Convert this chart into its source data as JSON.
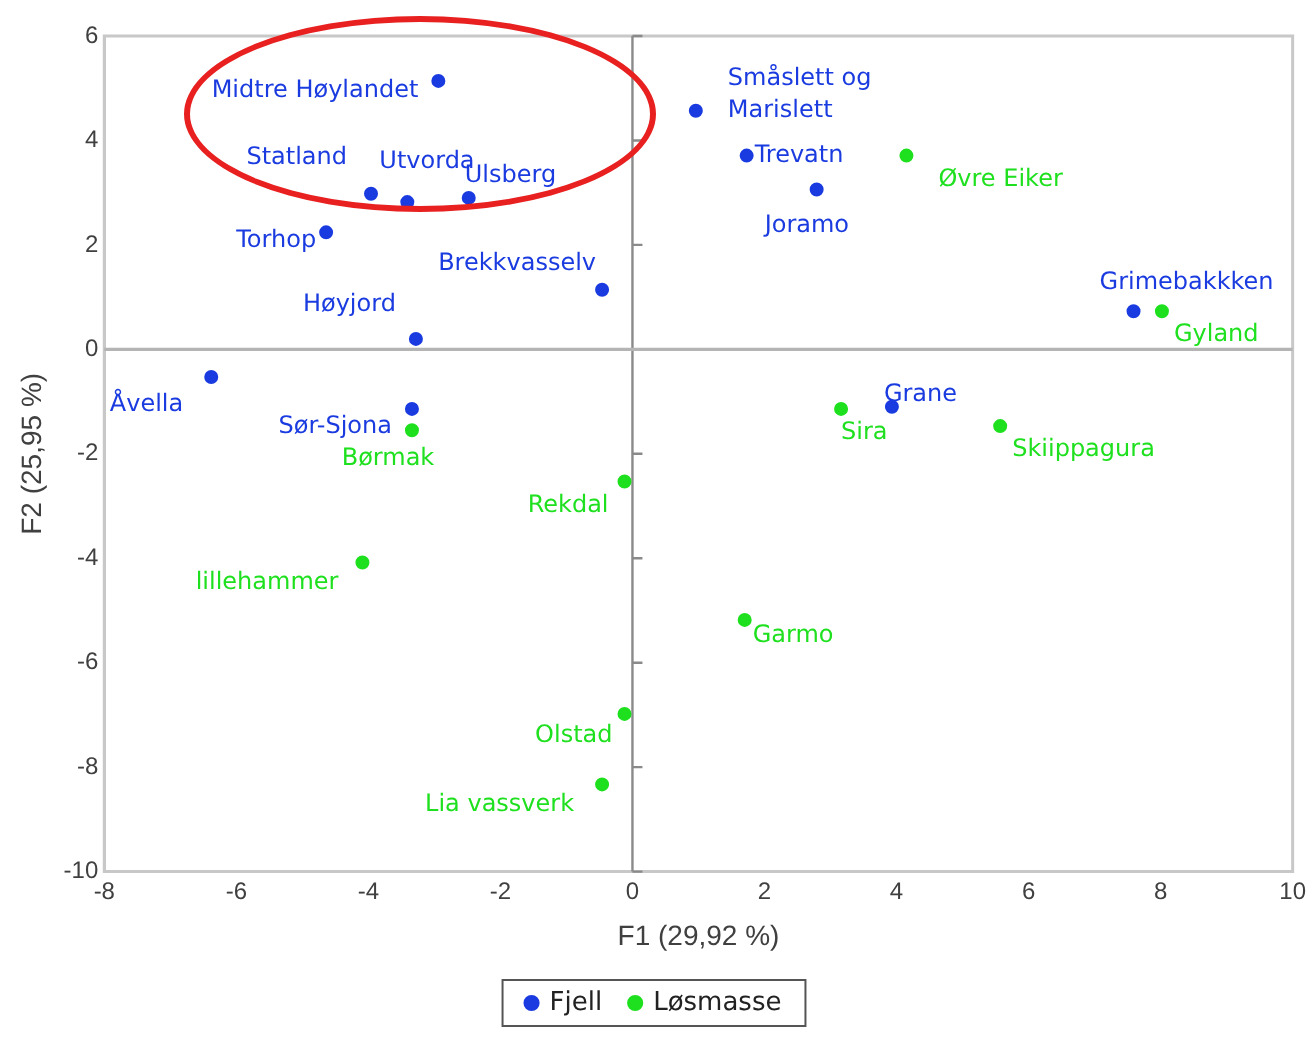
{
  "chart_data": {
    "type": "scatter",
    "xlabel": "F1 (29,92 %)",
    "ylabel": "F2 (25,95 %)",
    "xlim": [
      -8,
      10
    ],
    "xticks": [
      -8,
      -6,
      -4,
      -2,
      0,
      2,
      4,
      6,
      8,
      10
    ],
    "ylim": [
      -10,
      6
    ],
    "yticks": [
      -10,
      -8,
      -6,
      -4,
      -2,
      0,
      2,
      4,
      6
    ],
    "grid": false,
    "legend": "bottom",
    "marker": "circle",
    "ref_lines": [
      {
        "axis": "x",
        "value": 0,
        "color": "#8a8a8a"
      },
      {
        "axis": "y",
        "value": 0,
        "color": "#b4b4b4"
      }
    ],
    "series": [
      {
        "name": "Fjell",
        "color": "#1a3be0",
        "x": [
          -2.94,
          -3.96,
          -3.41,
          -2.48,
          -4.64,
          -0.46,
          -3.28,
          -6.38,
          -3.34,
          0.96,
          1.73,
          2.79,
          7.59,
          3.93
        ],
        "values": [
          5.14,
          2.98,
          2.82,
          2.9,
          2.24,
          1.14,
          0.2,
          -0.53,
          -1.14,
          4.57,
          3.71,
          3.06,
          0.73,
          -1.1
        ]
      },
      {
        "name": "Løsmasse",
        "color": "#1ee01e",
        "x": [
          -3.34,
          -0.12,
          -4.09,
          -0.12,
          -0.46,
          1.7,
          4.15,
          8.02,
          3.16,
          5.57
        ],
        "values": [
          -1.55,
          -2.53,
          -4.08,
          -6.98,
          -8.33,
          -5.18,
          3.71,
          0.73,
          -1.14,
          -1.47
        ]
      }
    ],
    "annotations": [
      {
        "text": "Midtre Høylandet",
        "x": -2.94,
        "y": 5.14
      },
      {
        "text": "Statland",
        "x": -3.96,
        "y": 2.98
      },
      {
        "text": "Utvorda",
        "x": -3.41,
        "y": 2.82
      },
      {
        "text": "Ulsberg",
        "x": -2.48,
        "y": 2.9
      },
      {
        "text": "Torhop",
        "x": -4.64,
        "y": 2.24
      },
      {
        "text": "Brekkvasselv",
        "x": -0.46,
        "y": 1.14
      },
      {
        "text": "Høyjord",
        "x": -3.28,
        "y": 0.2
      },
      {
        "text": "Åvella",
        "x": -6.38,
        "y": -0.53
      },
      {
        "text": "Sør-Sjona",
        "x": -3.34,
        "y": -1.14
      },
      {
        "text": "Småslett og\nMarislett",
        "x": 0.96,
        "y": 4.57
      },
      {
        "text": "Trevatn",
        "x": 1.73,
        "y": 3.71
      },
      {
        "text": "Joramo",
        "x": 2.79,
        "y": 3.06
      },
      {
        "text": "Grimebakkken",
        "x": 7.59,
        "y": 0.73
      },
      {
        "text": "Grane",
        "x": 3.93,
        "y": -1.1
      },
      {
        "text": "Børmak",
        "x": -3.34,
        "y": -1.55
      },
      {
        "text": "Rekdal",
        "x": -0.12,
        "y": -2.53
      },
      {
        "text": "lillehammer",
        "x": -4.09,
        "y": -4.08
      },
      {
        "text": "Olstad",
        "x": -0.12,
        "y": -6.98
      },
      {
        "text": "Lia vassverk",
        "x": -0.46,
        "y": -8.33
      },
      {
        "text": "Garmo",
        "x": 1.7,
        "y": -5.18
      },
      {
        "text": "Øvre Eiker",
        "x": 4.15,
        "y": 3.71
      },
      {
        "text": "Gyland",
        "x": 8.02,
        "y": 0.73
      },
      {
        "text": "Sira",
        "x": 3.16,
        "y": -1.14
      },
      {
        "text": "Skiippagura",
        "x": 5.57,
        "y": -1.47
      }
    ]
  }
}
